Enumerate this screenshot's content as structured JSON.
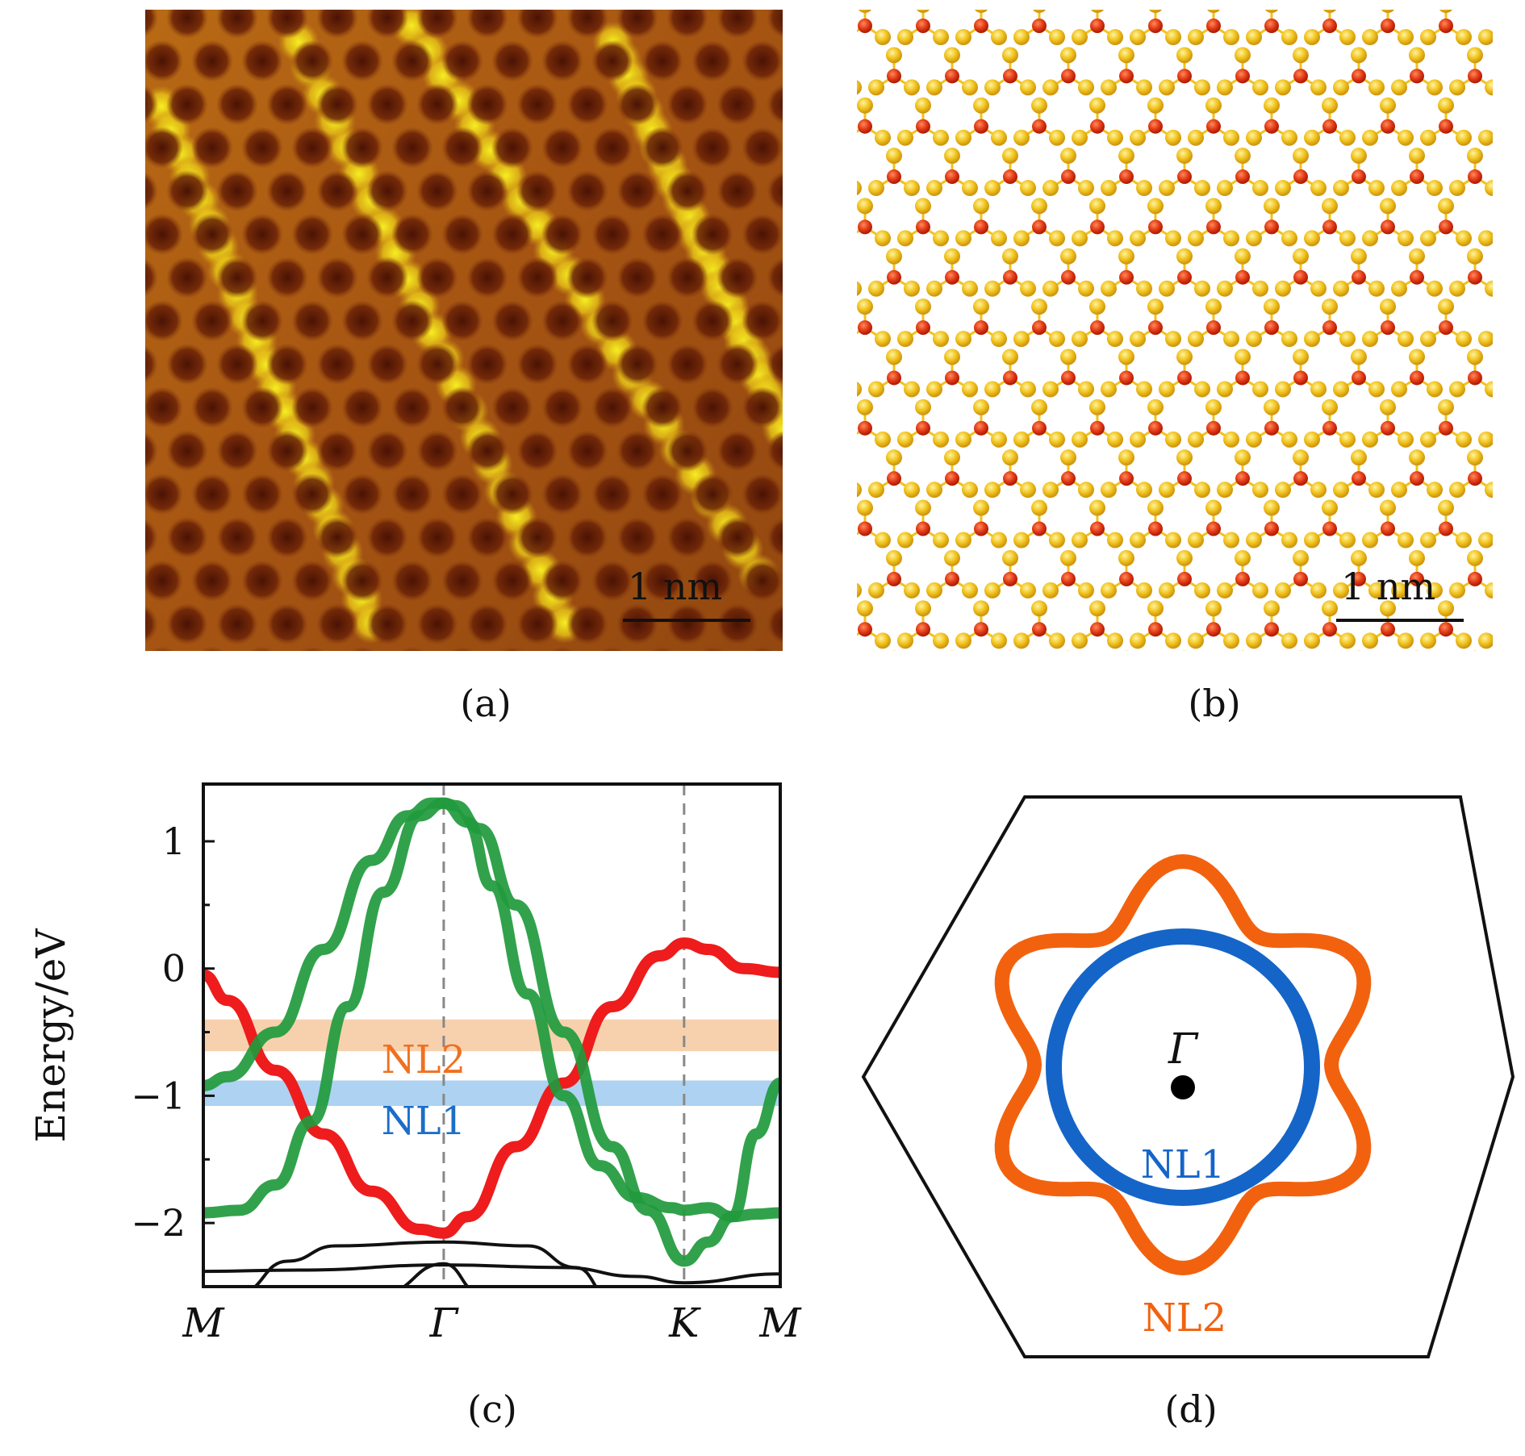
{
  "panels": {
    "a": {
      "caption": "(a)",
      "scalebar": "1 nm"
    },
    "b": {
      "caption": "(b)",
      "scalebar": "1 nm"
    },
    "c": {
      "caption": "(c)"
    },
    "d": {
      "caption": "(d)",
      "center_label": "Γ",
      "inner_loop": "NL1",
      "outer_loop": "NL2"
    }
  },
  "colors": {
    "stm_dark": "#5a1a06",
    "stm_mid": "#a85a12",
    "stm_bright": "#f2e818",
    "atom_red": "#e23a16",
    "atom_yellow": "#f0c21c",
    "band_green": "#1f9a3c",
    "band_red": "#ee1c1c",
    "band_black": "#111111",
    "nl1_blue": "#1565c8",
    "nl2_orange": "#f2620e",
    "nl1_band": "#9fcaf0",
    "nl2_band": "#f6c9a0"
  },
  "chart_data": {
    "type": "line",
    "ylabel": "Energy/eV",
    "xticks": [
      "M",
      "Γ",
      "K",
      "M"
    ],
    "x_positions": [
      0,
      1,
      2,
      2.4
    ],
    "yticks": [
      1,
      0,
      -1,
      -2
    ],
    "ytick_labels": [
      "1",
      "0",
      "−1",
      "−2"
    ],
    "ylim": [
      -2.5,
      1.45
    ],
    "xlim": [
      0,
      2.4
    ],
    "bands_regions": [
      {
        "name": "NL2",
        "ymin": -0.65,
        "ymax": -0.4
      },
      {
        "name": "NL1",
        "ymin": -1.08,
        "ymax": -0.88
      }
    ],
    "series": [
      {
        "color": "red",
        "x": [
          0,
          0.1,
          0.3,
          0.5,
          0.7,
          0.9,
          1.0,
          1.1,
          1.3,
          1.5,
          1.7,
          1.9,
          2.0,
          2.1,
          2.25,
          2.4
        ],
        "y": [
          -0.05,
          -0.25,
          -0.8,
          -1.3,
          -1.75,
          -2.05,
          -2.08,
          -1.95,
          -1.4,
          -0.9,
          -0.3,
          0.1,
          0.2,
          0.15,
          0.0,
          -0.03
        ]
      },
      {
        "color": "green",
        "x": [
          0,
          0.1,
          0.3,
          0.5,
          0.7,
          0.85,
          0.95,
          1.0,
          1.05,
          1.15,
          1.3,
          1.5,
          1.7,
          1.85,
          2.0,
          2.1,
          2.2,
          2.3,
          2.4
        ],
        "y": [
          -0.92,
          -0.85,
          -0.5,
          0.15,
          0.85,
          1.2,
          1.3,
          1.3,
          1.28,
          1.1,
          0.5,
          -0.5,
          -1.4,
          -1.9,
          -2.3,
          -2.15,
          -1.95,
          -1.3,
          -0.9
        ]
      },
      {
        "color": "green",
        "x": [
          0,
          0.15,
          0.3,
          0.45,
          0.6,
          0.75,
          0.9,
          1.0,
          1.1,
          1.2,
          1.35,
          1.5,
          1.65,
          1.8,
          1.95,
          2.0,
          2.1,
          2.2,
          2.3,
          2.4
        ],
        "y": [
          -1.92,
          -1.9,
          -1.7,
          -1.2,
          -0.3,
          0.6,
          1.2,
          1.3,
          1.15,
          0.65,
          -0.2,
          -1.0,
          -1.55,
          -1.8,
          -1.88,
          -1.9,
          -1.88,
          -1.95,
          -1.93,
          -1.92
        ]
      },
      {
        "color": "black",
        "x": [
          0.15,
          0.35,
          0.55,
          1.0,
          1.35,
          1.55,
          1.7
        ],
        "y": [
          -2.55,
          -2.3,
          -2.18,
          -2.15,
          -2.18,
          -2.35,
          -2.6
        ]
      },
      {
        "color": "black",
        "x": [
          0,
          0.4,
          1.0,
          1.5,
          1.8,
          2.0,
          2.4
        ],
        "y": [
          -2.38,
          -2.37,
          -2.33,
          -2.35,
          -2.42,
          -2.47,
          -2.4
        ]
      },
      {
        "color": "black",
        "x": [
          0.75,
          1.0,
          1.15
        ],
        "y": [
          -2.55,
          -2.32,
          -2.55
        ]
      }
    ]
  }
}
